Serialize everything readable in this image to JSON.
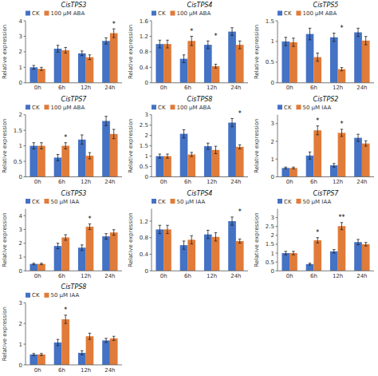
{
  "chart_data": [
    {
      "type": "bar",
      "title": "CisTPS3",
      "y_label": "Relative expression",
      "categories": [
        "0h",
        "6h",
        "12h",
        "24h"
      ],
      "series": [
        {
          "name": "CK",
          "color": "#4472C4",
          "values": [
            1.0,
            2.2,
            1.9,
            2.7
          ],
          "errors": [
            0.12,
            0.22,
            0.15,
            0.2
          ]
        },
        {
          "name": "100 μM ABA",
          "color": "#E07B39",
          "values": [
            0.9,
            2.1,
            1.65,
            3.2
          ],
          "errors": [
            0.1,
            0.18,
            0.15,
            0.28
          ]
        }
      ],
      "annotations": [
        null,
        null,
        null,
        "*"
      ],
      "ylim": [
        0,
        4.0
      ],
      "yticks": [
        0,
        1,
        2,
        3,
        4
      ],
      "legend": "upper left"
    },
    {
      "type": "bar",
      "title": "CisTPS4",
      "y_label": "Relative expression",
      "categories": [
        "0h",
        "6h",
        "12h",
        "24h"
      ],
      "series": [
        {
          "name": "CK",
          "color": "#4472C4",
          "values": [
            1.0,
            0.62,
            0.98,
            1.32
          ],
          "errors": [
            0.1,
            0.1,
            0.1,
            0.1
          ]
        },
        {
          "name": "100 μM ABA",
          "color": "#E07B39",
          "values": [
            1.0,
            1.08,
            0.43,
            0.98
          ],
          "errors": [
            0.1,
            0.12,
            0.05,
            0.1
          ]
        }
      ],
      "annotations": [
        null,
        "*",
        "*",
        null
      ],
      "ylim": [
        0,
        1.6
      ],
      "yticks": [
        0,
        0.4,
        0.8,
        1.2,
        1.6
      ],
      "legend": "upper left"
    },
    {
      "type": "bar",
      "title": "CisTPS5",
      "y_label": "Relative expression",
      "categories": [
        "0h",
        "6h",
        "12h",
        "24h"
      ],
      "series": [
        {
          "name": "CK",
          "color": "#4472C4",
          "values": [
            1.0,
            1.18,
            1.1,
            1.22
          ],
          "errors": [
            0.1,
            0.14,
            0.1,
            0.1
          ]
        },
        {
          "name": "100 μM ABA",
          "color": "#E07B39",
          "values": [
            0.98,
            0.62,
            0.33,
            1.02
          ],
          "errors": [
            0.1,
            0.1,
            0.04,
            0.1
          ]
        }
      ],
      "annotations": [
        null,
        null,
        "*",
        null
      ],
      "ylim": [
        0,
        1.5
      ],
      "yticks": [
        0,
        0.5,
        1,
        1.5
      ],
      "legend": "upper left"
    },
    {
      "type": "bar",
      "title": "CisTPS7",
      "y_label": "Relative expression",
      "categories": [
        "0h",
        "6h",
        "12h",
        "24h"
      ],
      "series": [
        {
          "name": "CK",
          "color": "#4472C4",
          "values": [
            1.0,
            0.62,
            1.2,
            1.8
          ],
          "errors": [
            0.1,
            0.1,
            0.15,
            0.15
          ]
        },
        {
          "name": "100 μM ABA",
          "color": "#E07B39",
          "values": [
            1.0,
            1.0,
            0.68,
            1.38
          ],
          "errors": [
            0.1,
            0.1,
            0.1,
            0.15
          ]
        }
      ],
      "annotations": [
        null,
        "*",
        null,
        null
      ],
      "ylim": [
        0,
        2.0
      ],
      "yticks": [
        0,
        0.5,
        1,
        1.5,
        2
      ],
      "legend": "upper left"
    },
    {
      "type": "bar",
      "title": "CisTPS8",
      "y_label": "Relative expression",
      "categories": [
        "0h",
        "6h",
        "12h",
        "24h"
      ],
      "series": [
        {
          "name": "CK",
          "color": "#4472C4",
          "values": [
            1.0,
            2.08,
            1.48,
            2.62
          ],
          "errors": [
            0.1,
            0.2,
            0.15,
            0.2
          ]
        },
        {
          "name": "100 μM ABA",
          "color": "#E07B39",
          "values": [
            1.0,
            1.08,
            1.3,
            1.45
          ],
          "errors": [
            0.1,
            0.1,
            0.18,
            0.1
          ]
        }
      ],
      "annotations": [
        null,
        null,
        null,
        "*"
      ],
      "ylim": [
        0,
        3.0
      ],
      "yticks": [
        0,
        0.5,
        1,
        1.5,
        2,
        2.5,
        3
      ],
      "legend": "upper left"
    },
    {
      "type": "bar",
      "title": "CisTPS2",
      "y_label": "Relative expression",
      "categories": [
        "0h",
        "6h",
        "12h",
        "24h"
      ],
      "series": [
        {
          "name": "CK",
          "color": "#4472C4",
          "values": [
            0.5,
            1.2,
            0.65,
            2.2
          ],
          "errors": [
            0.05,
            0.2,
            0.1,
            0.2
          ]
        },
        {
          "name": "50 μM IAA",
          "color": "#E07B39",
          "values": [
            0.5,
            2.62,
            2.48,
            1.88
          ],
          "errors": [
            0.05,
            0.25,
            0.2,
            0.15
          ]
        }
      ],
      "annotations": [
        null,
        "*",
        "*",
        null
      ],
      "ylim": [
        0,
        3.5
      ],
      "yticks": [
        0,
        1,
        2,
        3
      ],
      "legend": "upper left"
    },
    {
      "type": "bar",
      "title": "CisTPS3",
      "y_label": "Relative expression",
      "categories": [
        "0h",
        "6h",
        "12h",
        "24h"
      ],
      "series": [
        {
          "name": "CK",
          "color": "#4472C4",
          "values": [
            0.5,
            1.8,
            1.68,
            2.5
          ],
          "errors": [
            0.05,
            0.2,
            0.2,
            0.2
          ]
        },
        {
          "name": "50 μM IAA",
          "color": "#E07B39",
          "values": [
            0.5,
            2.42,
            3.2,
            2.78
          ],
          "errors": [
            0.05,
            0.2,
            0.2,
            0.2
          ]
        }
      ],
      "annotations": [
        null,
        null,
        "*",
        null
      ],
      "ylim": [
        0,
        4.5
      ],
      "yticks": [
        0,
        1,
        2,
        3,
        4
      ],
      "legend": "upper left"
    },
    {
      "type": "bar",
      "title": "CisTPS4",
      "y_label": "Relative expression",
      "categories": [
        "0h",
        "6h",
        "12h",
        "24h"
      ],
      "series": [
        {
          "name": "CK",
          "color": "#4472C4",
          "values": [
            1.0,
            0.62,
            0.88,
            1.2
          ],
          "errors": [
            0.1,
            0.1,
            0.1,
            0.1
          ]
        },
        {
          "name": "50 μM IAA",
          "color": "#E07B39",
          "values": [
            1.0,
            0.75,
            0.82,
            0.72
          ],
          "errors": [
            0.1,
            0.1,
            0.1,
            0.05
          ]
        }
      ],
      "annotations": [
        null,
        null,
        null,
        "*"
      ],
      "ylim": [
        0,
        1.5
      ],
      "yticks": [
        0,
        0.4,
        0.8,
        1.2
      ],
      "legend": "upper left"
    },
    {
      "type": "bar",
      "title": "CisTPS7",
      "y_label": "Relative expression",
      "categories": [
        "0h",
        "6h",
        "12h",
        "24h"
      ],
      "series": [
        {
          "name": "CK",
          "color": "#4472C4",
          "values": [
            1.0,
            0.38,
            1.1,
            1.62
          ],
          "errors": [
            0.1,
            0.05,
            0.1,
            0.15
          ]
        },
        {
          "name": "50 μM IAA",
          "color": "#E07B39",
          "values": [
            1.0,
            1.72,
            2.52,
            1.5
          ],
          "errors": [
            0.1,
            0.15,
            0.2,
            0.1
          ]
        }
      ],
      "annotations": [
        null,
        "*",
        "**",
        null
      ],
      "ylim": [
        0,
        3.5
      ],
      "yticks": [
        0,
        0.5,
        1,
        1.5,
        2,
        2.5,
        3
      ],
      "legend": "upper left"
    },
    {
      "type": "bar",
      "title": "CisTPS8",
      "y_label": "Relative expression",
      "categories": [
        "0h",
        "6h",
        "12h",
        "24h"
      ],
      "series": [
        {
          "name": "CK",
          "color": "#4472C4",
          "values": [
            0.5,
            1.08,
            0.58,
            1.18
          ],
          "errors": [
            0.05,
            0.15,
            0.1,
            0.1
          ]
        },
        {
          "name": "50 μM IAA",
          "color": "#E07B39",
          "values": [
            0.5,
            2.2,
            1.38,
            1.28
          ],
          "errors": [
            0.05,
            0.2,
            0.15,
            0.1
          ]
        }
      ],
      "annotations": [
        null,
        "*",
        null,
        null
      ],
      "ylim": [
        0,
        3.0
      ],
      "yticks": [
        0,
        1,
        2,
        3
      ],
      "legend": "upper left"
    }
  ]
}
